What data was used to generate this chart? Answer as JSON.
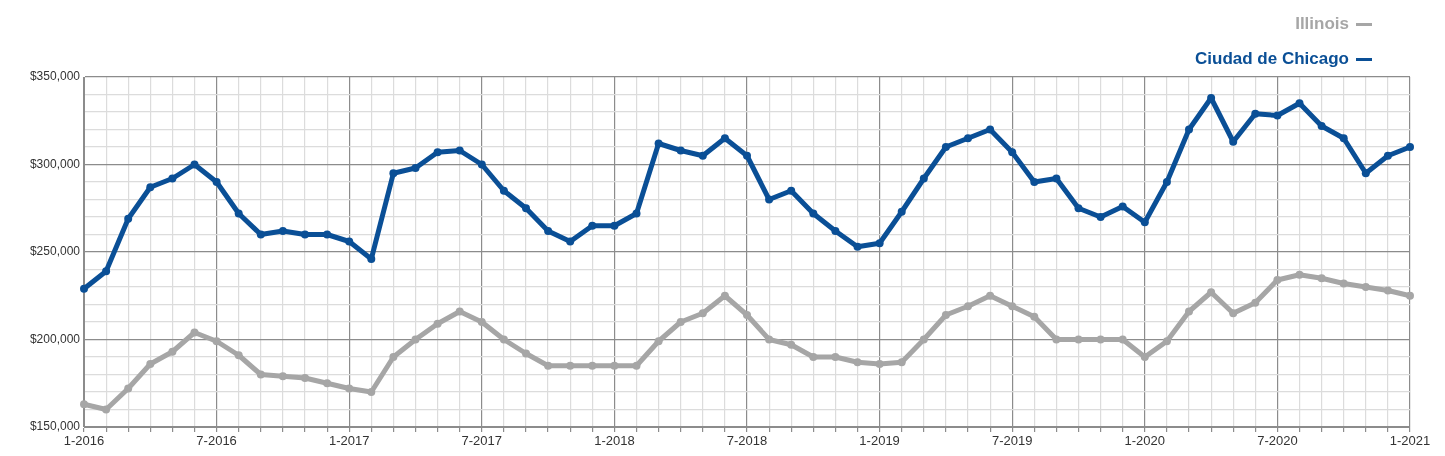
{
  "chart_data": {
    "type": "line",
    "categories": [
      "1-2016",
      null,
      null,
      null,
      null,
      null,
      "7-2016",
      null,
      null,
      null,
      null,
      null,
      "1-2017",
      null,
      null,
      null,
      null,
      null,
      "7-2017",
      null,
      null,
      null,
      null,
      null,
      "1-2018",
      null,
      null,
      null,
      null,
      null,
      "7-2018",
      null,
      null,
      null,
      null,
      null,
      "1-2019",
      null,
      null,
      null,
      null,
      null,
      "7-2019",
      null,
      null,
      null,
      null,
      null,
      "1-2020",
      null,
      null,
      null,
      null,
      null,
      "7-2020",
      null,
      null,
      null,
      null,
      null,
      "1-2021"
    ],
    "series": [
      {
        "name": "Illinois",
        "color": "#a6a6a6",
        "values": [
          163000,
          160000,
          172000,
          186000,
          193000,
          204000,
          199000,
          191000,
          180000,
          179000,
          178000,
          175000,
          172000,
          170000,
          190000,
          200000,
          209000,
          216000,
          210000,
          200000,
          192000,
          185000,
          185000,
          185000,
          185000,
          185000,
          199000,
          210000,
          215000,
          225000,
          214000,
          200000,
          197000,
          190000,
          190000,
          187000,
          186000,
          187000,
          200000,
          214000,
          219000,
          225000,
          219000,
          213000,
          200000,
          200000,
          200000,
          200000,
          190000,
          199000,
          216000,
          227000,
          215000,
          221000,
          234000,
          237000,
          235000,
          232000,
          230000,
          228000,
          225000
        ]
      },
      {
        "name": "Ciudad de Chicago",
        "color": "#0a4f96",
        "values": [
          229000,
          239000,
          269000,
          287000,
          292000,
          300000,
          290000,
          272000,
          260000,
          262000,
          260000,
          260000,
          256000,
          246000,
          295000,
          298000,
          307000,
          308000,
          300000,
          285000,
          275000,
          262000,
          256000,
          265000,
          265000,
          272000,
          312000,
          308000,
          305000,
          315000,
          305000,
          280000,
          285000,
          272000,
          262000,
          253000,
          255000,
          273000,
          292000,
          310000,
          315000,
          320000,
          307000,
          290000,
          292000,
          275000,
          270000,
          276000,
          267000,
          290000,
          320000,
          338000,
          313000,
          329000,
          328000,
          335000,
          322000,
          315000,
          295000,
          305000,
          310000
        ]
      }
    ],
    "ylim": [
      150000,
      350000
    ],
    "yticks": [
      {
        "value": 150000,
        "label": "$150,000"
      },
      {
        "value": 160000,
        "label": null
      },
      {
        "value": 170000,
        "label": null
      },
      {
        "value": 180000,
        "label": null
      },
      {
        "value": 190000,
        "label": null
      },
      {
        "value": 200000,
        "label": "$200,000"
      },
      {
        "value": 210000,
        "label": null
      },
      {
        "value": 220000,
        "label": null
      },
      {
        "value": 230000,
        "label": null
      },
      {
        "value": 240000,
        "label": null
      },
      {
        "value": 250000,
        "label": "$250,000"
      },
      {
        "value": 260000,
        "label": null
      },
      {
        "value": 270000,
        "label": null
      },
      {
        "value": 280000,
        "label": null
      },
      {
        "value": 290000,
        "label": null
      },
      {
        "value": 300000,
        "label": "$300,000"
      },
      {
        "value": 310000,
        "label": null
      },
      {
        "value": 320000,
        "label": null
      },
      {
        "value": 330000,
        "label": null
      },
      {
        "value": 340000,
        "label": null
      },
      {
        "value": 350000,
        "label": "$350,000"
      }
    ],
    "grid": true,
    "legend": "top right",
    "marker": "circle",
    "line_style": "solid"
  }
}
